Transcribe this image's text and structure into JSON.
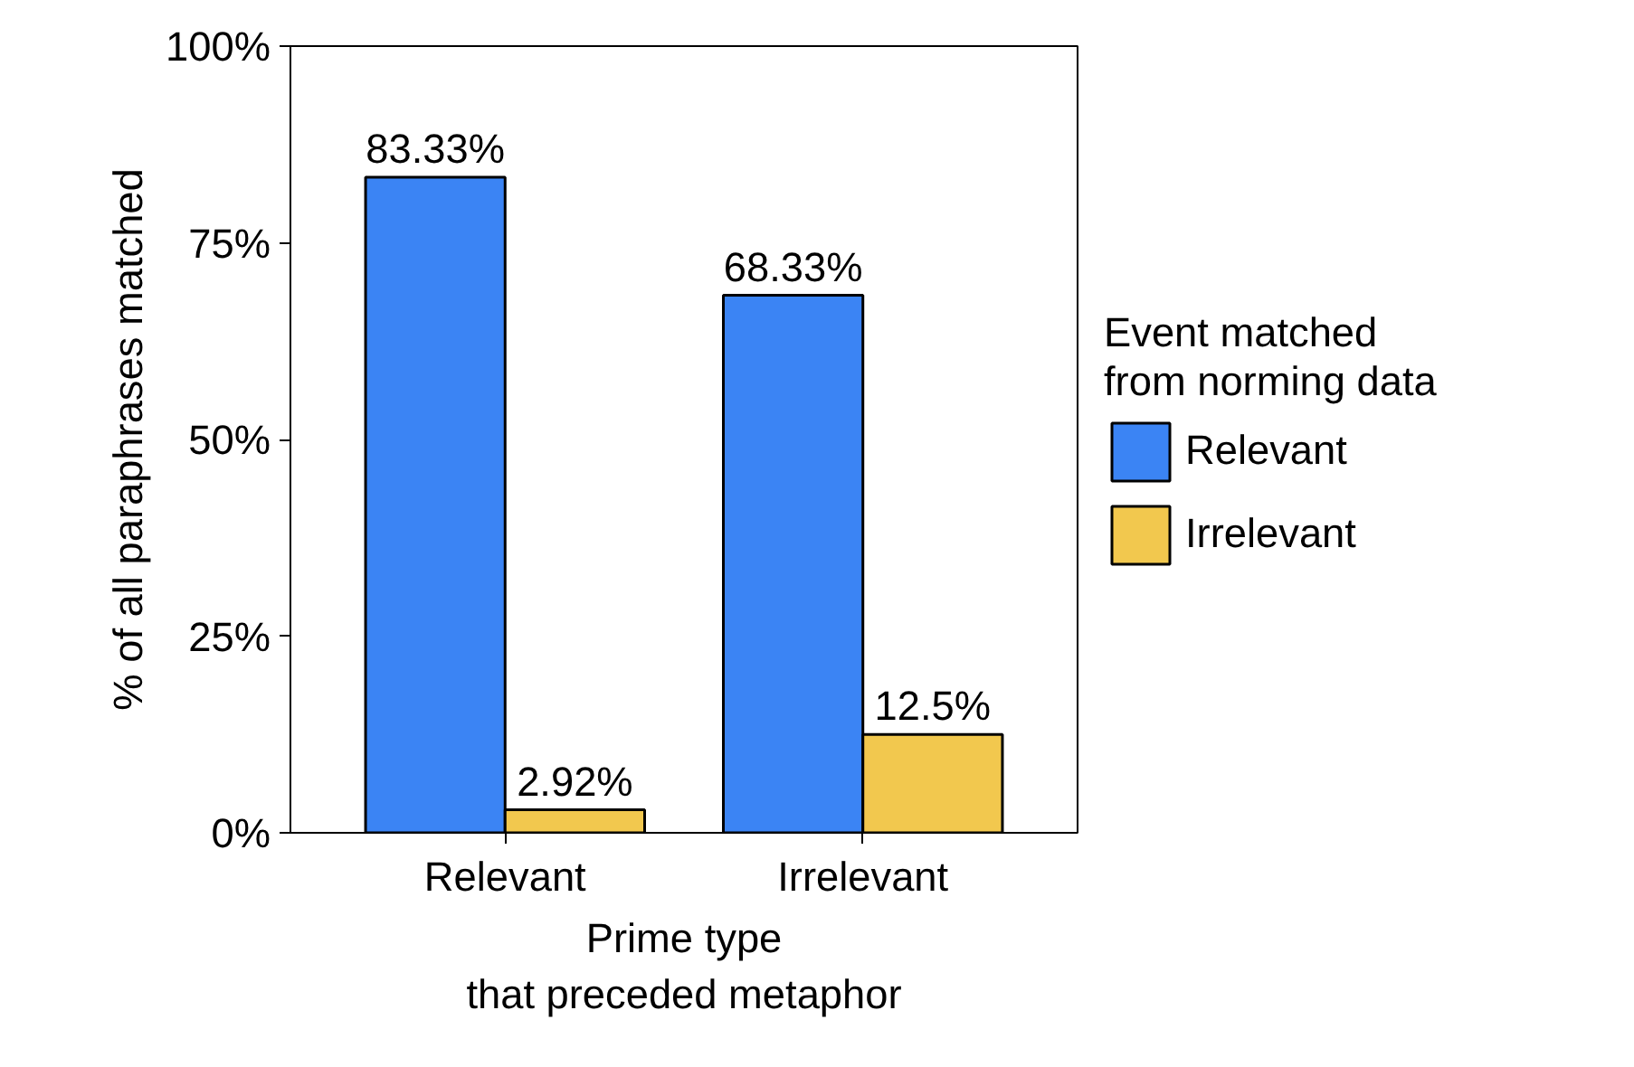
{
  "chart_data": {
    "type": "bar",
    "xlabel": "Prime type\nthat preceded metaphor",
    "ylabel": "% of all paraphrases matched",
    "legend_title": "Event matched\nfrom norming data",
    "categories": [
      "Relevant",
      "Irrelevant"
    ],
    "series": [
      {
        "name": "Relevant",
        "color": "#3b84f4",
        "values": [
          83.33,
          68.33
        ],
        "value_labels": [
          "83.33%",
          "68.33%"
        ]
      },
      {
        "name": "Irrelevant",
        "color": "#f2c84e",
        "values": [
          2.92,
          12.5
        ],
        "value_labels": [
          "2.92%",
          "12.5%"
        ]
      }
    ],
    "ylim": [
      0,
      100
    ],
    "yticks": [
      {
        "value": 0,
        "label": "0%"
      },
      {
        "value": 25,
        "label": "25%"
      },
      {
        "value": 50,
        "label": "50%"
      },
      {
        "value": 75,
        "label": "75%"
      },
      {
        "value": 100,
        "label": "100%"
      }
    ],
    "grid": false,
    "legend": "right"
  }
}
